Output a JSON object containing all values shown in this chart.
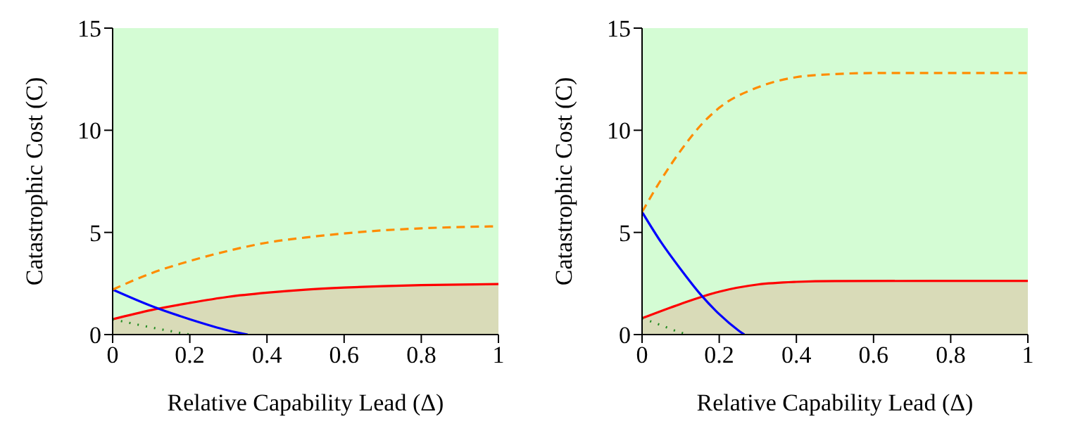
{
  "chart_data": [
    {
      "type": "line",
      "xlabel": "Relative Capability Lead (Δ)",
      "ylabel": "Catastrophic Cost (C)",
      "xlim": [
        0,
        1
      ],
      "ylim": [
        0,
        15
      ],
      "xticks": [
        0,
        0.2,
        0.4,
        0.6,
        0.8,
        1
      ],
      "yticks": [
        0,
        5,
        10,
        15
      ],
      "grid": false,
      "legend": false,
      "bands": [
        {
          "axis": "y",
          "from": 0,
          "to": 15,
          "color": "#d4fcd4"
        }
      ],
      "series": [
        {
          "type": "area",
          "color": "#ff0000",
          "x": [
            0,
            0.1,
            0.2,
            0.3,
            0.4,
            0.5,
            0.6,
            0.7,
            0.8,
            0.9,
            1
          ],
          "values": [
            0.75,
            1.2,
            1.55,
            1.85,
            2.05,
            2.2,
            2.3,
            2.37,
            2.42,
            2.45,
            2.47
          ]
        },
        {
          "color": "#0000ff",
          "line_style": "solid",
          "x": [
            0,
            0.1,
            0.2,
            0.3,
            0.35
          ],
          "values": [
            2.2,
            1.4,
            0.75,
            0.2,
            0
          ]
        },
        {
          "color": "#ff8c00",
          "line_style": "dashed",
          "x": [
            0,
            0.1,
            0.2,
            0.3,
            0.4,
            0.5,
            0.6,
            0.7,
            0.8,
            1
          ],
          "values": [
            2.2,
            3.0,
            3.6,
            4.1,
            4.5,
            4.75,
            4.95,
            5.1,
            5.2,
            5.3
          ]
        },
        {
          "color": "#228b22",
          "line_style": "dotted",
          "x": [
            0,
            0.1,
            0.2
          ],
          "values": [
            0.75,
            0.35,
            0
          ]
        }
      ]
    },
    {
      "type": "line",
      "xlabel": "Relative Capability Lead (Δ)",
      "ylabel": "Catastrophic Cost (C)",
      "xlim": [
        0,
        1
      ],
      "ylim": [
        0,
        15
      ],
      "xticks": [
        0,
        0.2,
        0.4,
        0.6,
        0.8,
        1
      ],
      "yticks": [
        0,
        5,
        10,
        15
      ],
      "grid": false,
      "legend": false,
      "bands": [
        {
          "axis": "y",
          "from": 0,
          "to": 15,
          "color": "#d4fcd4"
        }
      ],
      "series": [
        {
          "type": "area",
          "color": "#ff0000",
          "x": [
            0,
            0.1,
            0.2,
            0.3,
            0.4,
            0.5,
            1
          ],
          "values": [
            0.8,
            1.5,
            2.1,
            2.45,
            2.58,
            2.62,
            2.63
          ]
        },
        {
          "color": "#0000ff",
          "line_style": "solid",
          "x": [
            0,
            0.05,
            0.1,
            0.15,
            0.2,
            0.25,
            0.265
          ],
          "values": [
            6,
            4.5,
            3.2,
            2.0,
            1.0,
            0.2,
            0
          ]
        },
        {
          "color": "#ff8c00",
          "line_style": "dashed",
          "x": [
            0,
            0.05,
            0.1,
            0.15,
            0.2,
            0.3,
            0.4,
            0.5,
            0.6,
            1
          ],
          "values": [
            6,
            7.6,
            9.0,
            10.2,
            11.1,
            12.1,
            12.6,
            12.75,
            12.8,
            12.8
          ]
        },
        {
          "color": "#228b22",
          "line_style": "dotted",
          "x": [
            0,
            0.05,
            0.1,
            0.12
          ],
          "values": [
            0.8,
            0.45,
            0.1,
            0
          ]
        }
      ]
    }
  ]
}
